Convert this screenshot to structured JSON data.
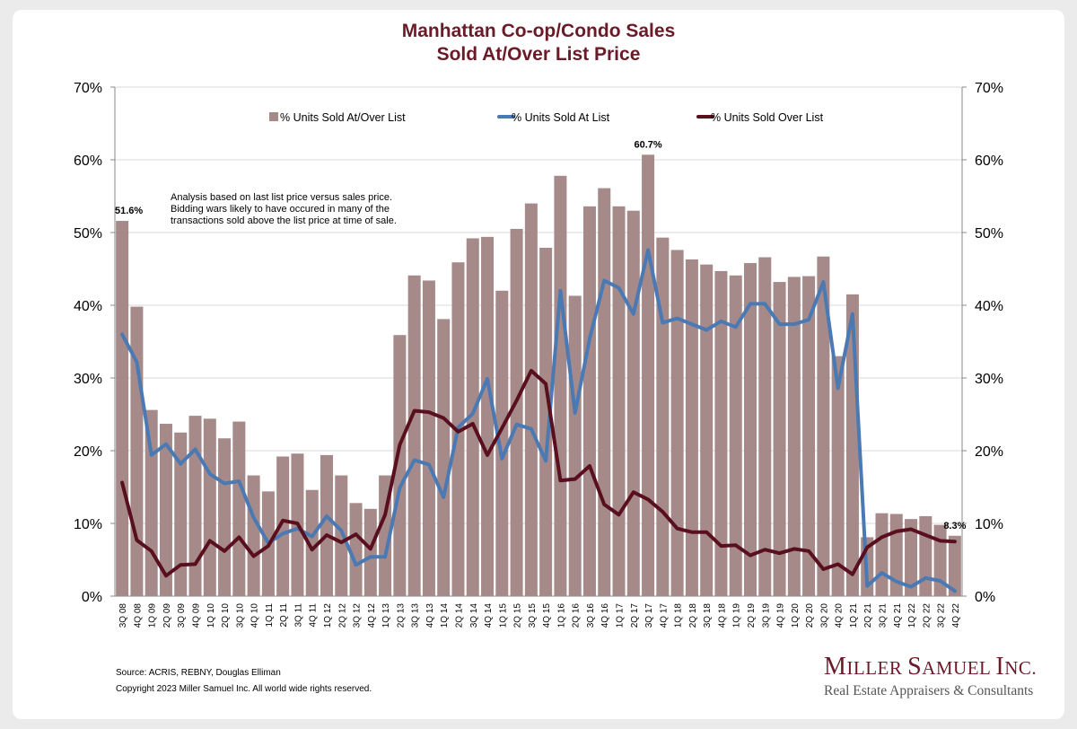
{
  "title_line1": "Manhattan Co-op/Condo Sales",
  "title_line2": "Sold At/Over List Price",
  "note_lines": [
    "Analysis based on last list price versus sales price.",
    "Bidding wars likely to have occured in many of the",
    "transactions sold above the list price at time of sale."
  ],
  "source": "Source: ACRIS, REBNY, Douglas Elliman",
  "copyright": "Copyright 2023 Miller Samuel Inc.  All world wide rights reserved.",
  "logo": {
    "name_parts": [
      "M",
      "ILLER ",
      "S",
      "AMUEL ",
      "I",
      "NC."
    ],
    "tagline": "Real Estate Appraisers & Consultants"
  },
  "colors": {
    "bar": "#a58a89",
    "at_list": "#4a79b3",
    "over_list": "#5a0f1e",
    "title": "#6b1a28",
    "grid": "#d9d9d9"
  },
  "chart_data": {
    "type": "bar",
    "categories": [
      "3Q 08",
      "4Q 08",
      "1Q 09",
      "2Q 09",
      "3Q 09",
      "4Q 09",
      "1Q 10",
      "2Q 10",
      "3Q 10",
      "4Q 10",
      "1Q 11",
      "2Q 11",
      "3Q 11",
      "4Q 11",
      "1Q 12",
      "2Q 12",
      "3Q 12",
      "4Q 12",
      "1Q 13",
      "2Q 13",
      "3Q 13",
      "4Q 13",
      "1Q 14",
      "2Q 14",
      "3Q 14",
      "4Q 14",
      "1Q 15",
      "2Q 15",
      "3Q 15",
      "4Q 15",
      "1Q 16",
      "2Q 16",
      "3Q 16",
      "4Q 16",
      "1Q 17",
      "2Q 17",
      "3Q 17",
      "4Q 17",
      "1Q 18",
      "2Q 18",
      "3Q 18",
      "4Q 18",
      "1Q 19",
      "2Q 19",
      "3Q 19",
      "4Q 19",
      "1Q 20",
      "2Q 20",
      "3Q 20",
      "4Q 20",
      "1Q 21",
      "2Q 21",
      "3Q 21",
      "4Q 21",
      "1Q 22",
      "2Q 22",
      "3Q 22",
      "4Q 22"
    ],
    "series": [
      {
        "name": "% Units Sold At/Over List",
        "kind": "bar",
        "values": [
          51.6,
          39.8,
          25.6,
          23.7,
          22.5,
          24.8,
          24.4,
          21.7,
          24.0,
          16.6,
          14.4,
          19.2,
          19.6,
          14.6,
          19.4,
          16.6,
          12.8,
          12.0,
          16.6,
          35.9,
          44.1,
          43.4,
          38.1,
          45.9,
          49.2,
          49.4,
          42.0,
          50.5,
          54.0,
          47.9,
          57.8,
          41.3,
          53.6,
          56.1,
          53.6,
          53.0,
          60.7,
          49.3,
          47.6,
          46.3,
          45.6,
          44.7,
          44.1,
          45.8,
          46.6,
          43.2,
          43.9,
          44.0,
          46.7,
          33.0,
          41.5,
          8.1,
          11.4,
          11.3,
          10.6,
          11.0,
          9.8,
          8.3
        ]
      },
      {
        "name": "% Units Sold At List",
        "kind": "line",
        "values": [
          36.0,
          32.2,
          19.4,
          20.9,
          18.2,
          20.2,
          16.8,
          15.5,
          15.8,
          10.8,
          7.3,
          8.6,
          9.3,
          8.2,
          11.0,
          9.0,
          4.3,
          5.4,
          5.4,
          14.9,
          18.7,
          18.1,
          13.6,
          23.2,
          25.1,
          29.9,
          18.9,
          23.6,
          23.0,
          18.6,
          42.0,
          25.2,
          35.4,
          43.4,
          42.4,
          38.8,
          47.6,
          37.6,
          38.2,
          37.4,
          36.6,
          37.8,
          37.0,
          40.2,
          40.2,
          37.4,
          37.4,
          38.0,
          43.2,
          28.6,
          38.8,
          1.4,
          3.2,
          2.0,
          1.3,
          2.5,
          2.1,
          0.7
        ]
      },
      {
        "name": "% Units Sold Over List",
        "kind": "line",
        "values": [
          15.6,
          7.7,
          6.2,
          2.8,
          4.3,
          4.4,
          7.6,
          6.2,
          8.1,
          5.5,
          6.9,
          10.4,
          10.0,
          6.4,
          8.4,
          7.4,
          8.5,
          6.5,
          11.2,
          20.8,
          25.5,
          25.3,
          24.5,
          22.6,
          23.7,
          19.4,
          23.1,
          26.9,
          31.0,
          29.2,
          15.9,
          16.1,
          17.9,
          12.6,
          11.2,
          14.3,
          13.3,
          11.6,
          9.3,
          8.8,
          8.8,
          6.9,
          7.0,
          5.6,
          6.4,
          5.9,
          6.5,
          6.2,
          3.7,
          4.4,
          3.0,
          6.7,
          8.1,
          8.9,
          9.2,
          8.4,
          7.6,
          7.5
        ]
      }
    ],
    "callouts": [
      {
        "index": 0,
        "label": "51.6%"
      },
      {
        "index": 36,
        "label": "60.7%"
      },
      {
        "index": 57,
        "label": "8.3%"
      }
    ],
    "y_ticks": [
      "0%",
      "10%",
      "20%",
      "30%",
      "40%",
      "50%",
      "60%",
      "70%"
    ],
    "ylim": [
      0,
      70
    ],
    "legend_position": "top-center",
    "grid": true
  }
}
